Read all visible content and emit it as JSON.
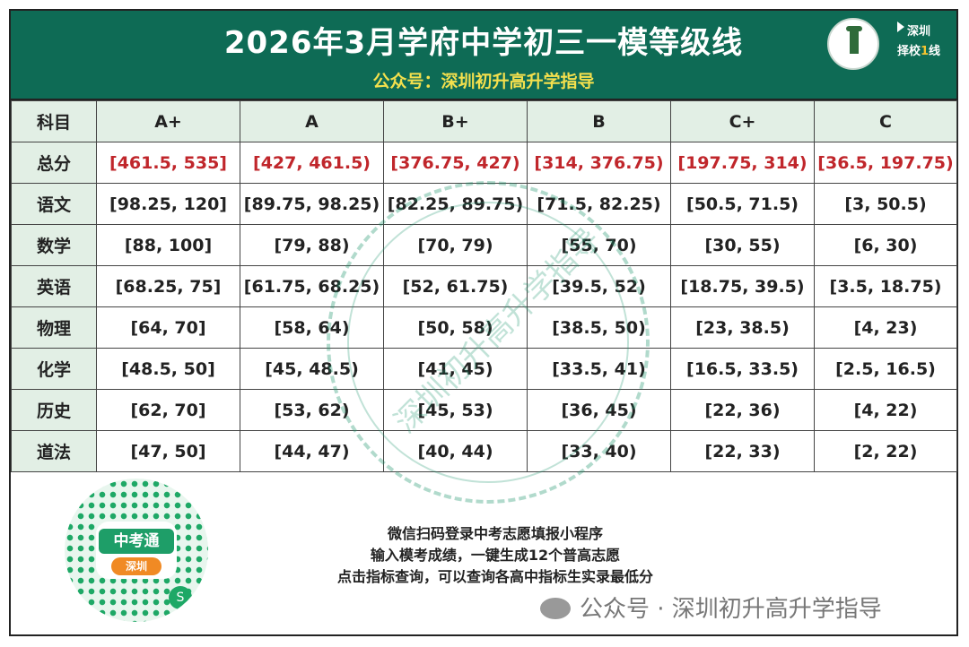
{
  "header": {
    "title": "2026年3月学府中学初三一模等级线",
    "subtitle": "公众号：深圳初升高升学指导",
    "logo_right_line1": "深圳",
    "logo_right_line2": "择校",
    "logo_right_num": "1",
    "logo_right_line3": "线"
  },
  "table": {
    "headers": [
      "科目",
      "A+",
      "A",
      "B+",
      "B",
      "C+",
      "C"
    ],
    "rows": [
      {
        "subject": "总分",
        "cells": [
          "[461.5, 535]",
          "[427, 461.5)",
          "[376.75, 427)",
          "[314, 376.75)",
          "[197.75, 314)",
          "[36.5, 197.75)"
        ]
      },
      {
        "subject": "语文",
        "cells": [
          "[98.25, 120]",
          "[89.75, 98.25)",
          "[82.25, 89.75)",
          "[71.5, 82.25)",
          "[50.5, 71.5)",
          "[3, 50.5)"
        ]
      },
      {
        "subject": "数学",
        "cells": [
          "[88, 100]",
          "[79, 88)",
          "[70, 79)",
          "[55, 70)",
          "[30, 55)",
          "[6, 30)"
        ]
      },
      {
        "subject": "英语",
        "cells": [
          "[68.25, 75]",
          "[61.75, 68.25)",
          "[52, 61.75)",
          "[39.5, 52)",
          "[18.75, 39.5)",
          "[3.5, 18.75)"
        ]
      },
      {
        "subject": "物理",
        "cells": [
          "[64, 70]",
          "[58, 64)",
          "[50, 58)",
          "[38.5, 50)",
          "[23, 38.5)",
          "[4, 23)"
        ]
      },
      {
        "subject": "化学",
        "cells": [
          "[48.5, 50]",
          "[45, 48.5)",
          "[41, 45)",
          "[33.5, 41)",
          "[16.5, 33.5)",
          "[2.5, 16.5)"
        ]
      },
      {
        "subject": "历史",
        "cells": [
          "[62, 70]",
          "[53, 62)",
          "[45, 53)",
          "[36, 45)",
          "[22, 36)",
          "[4, 22)"
        ]
      },
      {
        "subject": "道法",
        "cells": [
          "[47, 50]",
          "[44, 47)",
          "[40, 44)",
          "[33, 40)",
          "[22, 33)",
          "[2, 22)"
        ]
      }
    ]
  },
  "footer": {
    "qr_badge": "中考通",
    "qr_badge_sub": "深圳",
    "notes": [
      "微信扫码登录中考志愿填报小程序",
      "输入模考成绩，一键生成12个普高志愿",
      "点击指标查询，可以查询各高中指标生实录最低分"
    ],
    "watermark": "公众号 · 深圳初升高升学指导"
  },
  "stamp_text": "深圳初升高升学指导",
  "colors": {
    "header_bg": "#0e6b55",
    "subtitle": "#f4e04d",
    "red_values": "#c0262b",
    "subject_bg": "#e2efe5"
  }
}
